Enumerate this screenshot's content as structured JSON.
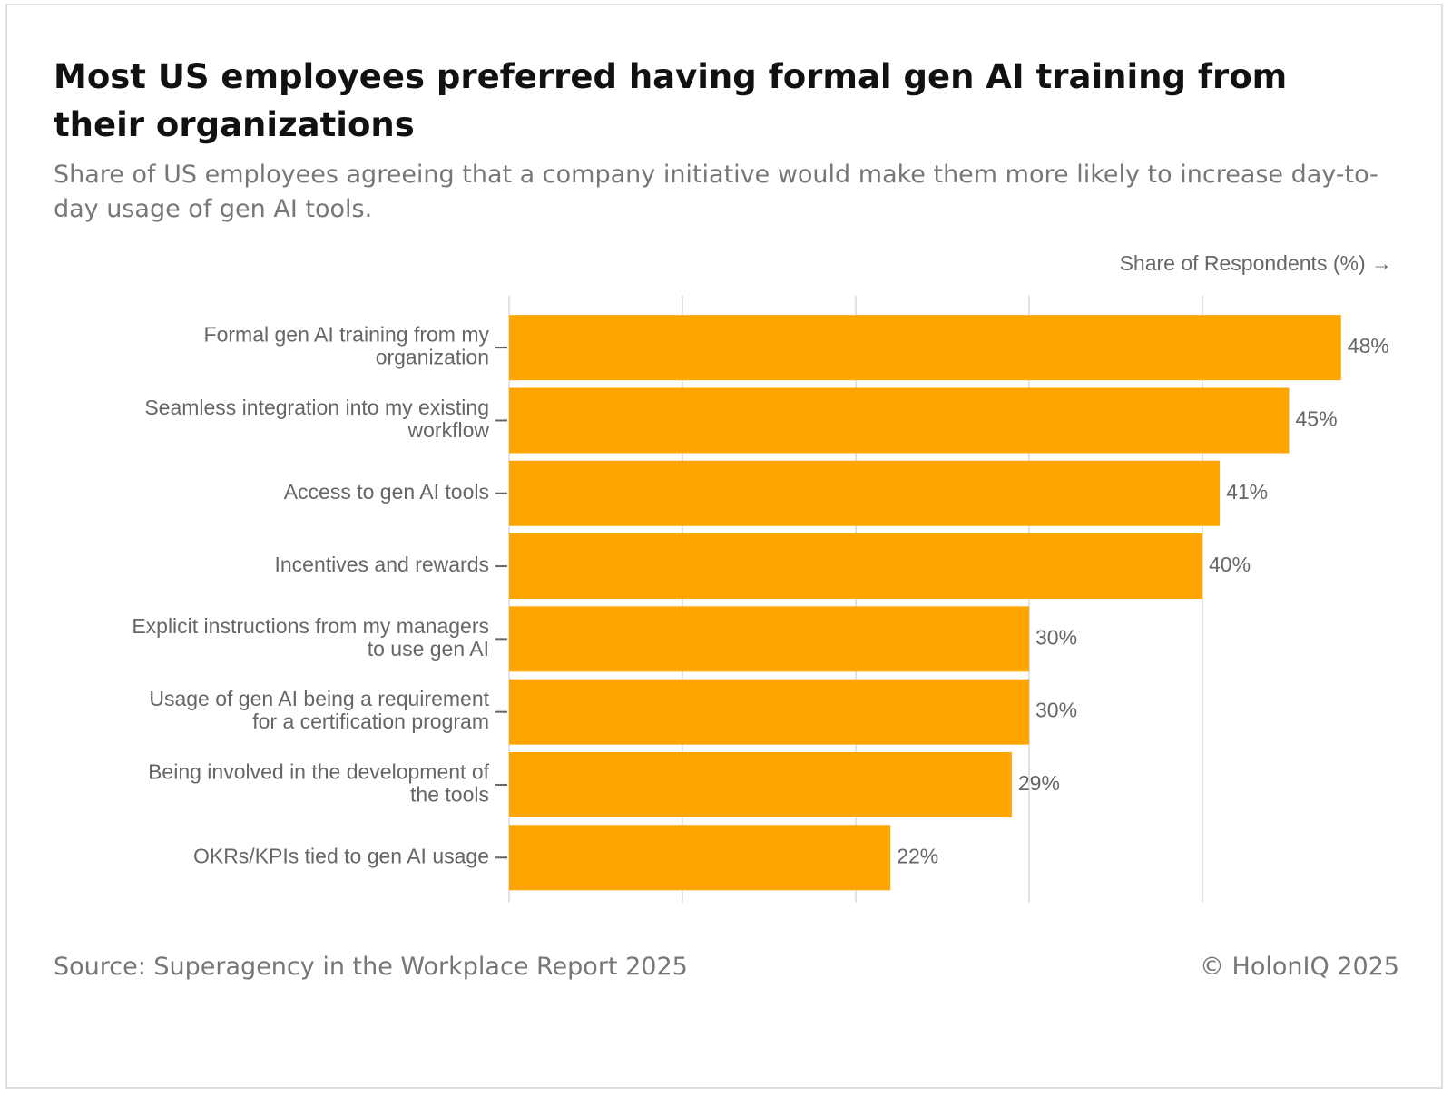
{
  "chart_data": {
    "type": "bar",
    "orientation": "horizontal",
    "title": "Most US employees preferred having formal gen AI training from their organizations",
    "subtitle": "Share of US employees agreeing that a company initiative would make them more likely to increase day-to-day usage of gen AI tools.",
    "x_label": "Share of Respondents (%) →",
    "categories": [
      "Formal gen AI training from my organization",
      "Seamless integration into my existing workflow",
      "Access to gen AI tools",
      "Incentives and rewards",
      "Explicit instructions from my managers to use gen AI",
      "Usage of gen AI being a requirement for a certification program",
      "Being involved in the development of the tools",
      "OKRs/KPIs tied to gen AI usage"
    ],
    "values": [
      48,
      45,
      41,
      40,
      30,
      30,
      29,
      22
    ],
    "value_labels": [
      "48%",
      "45%",
      "41%",
      "40%",
      "30%",
      "30%",
      "29%",
      "22%"
    ],
    "color": "#ffa500",
    "xlim": [
      0,
      50
    ],
    "xticks": [
      0,
      10,
      20,
      30,
      40
    ],
    "grid": true,
    "source": "Source: Superagency in the Workplace Report 2025",
    "copyright": "© HolonIQ 2025"
  }
}
